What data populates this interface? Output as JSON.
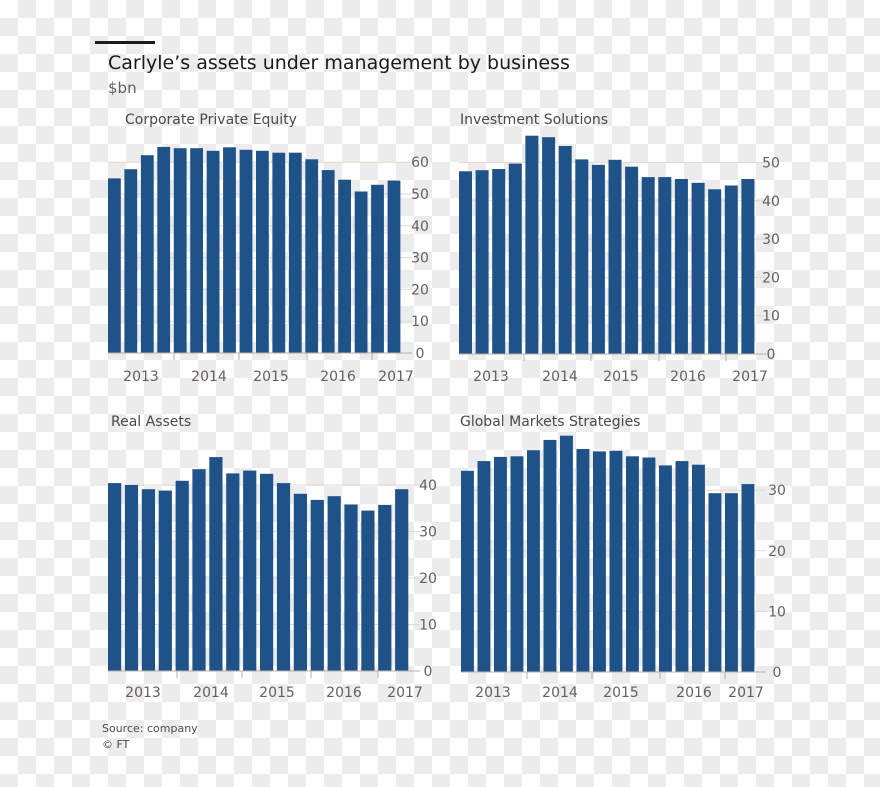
{
  "title": "Carlyle’s assets under management by business",
  "unit": "$bn",
  "source": "Source: company",
  "credit": "© FT",
  "bar_color": "#1f5289",
  "chart_data": [
    {
      "type": "bar",
      "title": "Corporate Private Equity",
      "x_tick_labels": [
        "2013",
        "2014",
        "2015",
        "2016",
        "2017"
      ],
      "values": [
        54.9,
        57.8,
        62.2,
        64.8,
        64.4,
        64.4,
        63.6,
        64.7,
        63.9,
        63.6,
        63.0,
        63.0,
        60.9,
        57.5,
        54.5,
        50.8,
        52.9,
        54.2
      ],
      "y_ticks": [
        0,
        10,
        20,
        30,
        40,
        50,
        60
      ],
      "ylim": [
        0,
        66
      ]
    },
    {
      "type": "bar",
      "title": "Investment Solutions",
      "x_tick_labels": [
        "2013",
        "2014",
        "2015",
        "2016",
        "2017"
      ],
      "values": [
        47.7,
        48.0,
        48.3,
        49.7,
        57.0,
        56.6,
        54.3,
        50.8,
        49.4,
        50.7,
        48.9,
        46.2,
        46.2,
        45.7,
        44.7,
        43.0,
        44.0,
        45.7
      ],
      "y_ticks": [
        0,
        10,
        20,
        30,
        40,
        50
      ],
      "ylim": [
        0,
        58
      ]
    },
    {
      "type": "bar",
      "title": "Real Assets",
      "x_tick_labels": [
        "2013",
        "2014",
        "2015",
        "2016",
        "2017"
      ],
      "values": [
        40.4,
        40.0,
        39.1,
        38.8,
        40.9,
        43.4,
        46.0,
        42.5,
        43.1,
        42.4,
        40.4,
        38.1,
        36.8,
        37.6,
        35.8,
        34.5,
        35.7,
        39.1
      ],
      "y_ticks": [
        0,
        10,
        20,
        30,
        40
      ],
      "ylim": [
        0,
        47
      ]
    },
    {
      "type": "bar",
      "title": "Global Markets Strategies",
      "x_tick_labels": [
        "2013",
        "2014",
        "2015",
        "2016",
        "2017"
      ],
      "values": [
        33.2,
        34.8,
        35.5,
        35.6,
        36.6,
        38.3,
        39.0,
        36.8,
        36.4,
        36.5,
        35.6,
        35.4,
        34.1,
        34.8,
        34.2,
        29.5,
        29.5,
        31.0
      ],
      "y_ticks": [
        0,
        10,
        20,
        30
      ],
      "ylim": [
        0,
        40
      ]
    }
  ]
}
